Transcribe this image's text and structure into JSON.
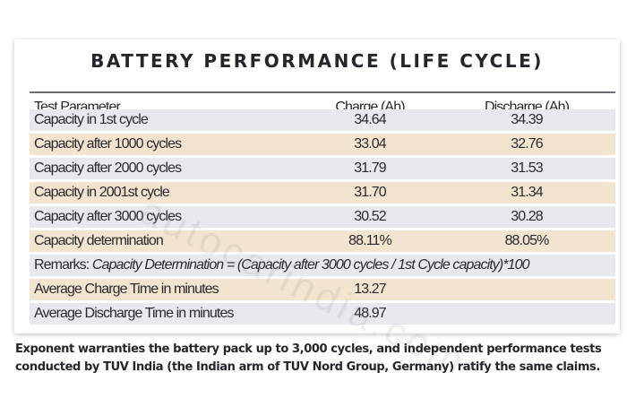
{
  "title": "BATTERY PERFORMANCE (LIFE CYCLE)",
  "table": {
    "headers": [
      "Test Parameter",
      "Charge (Ah)",
      "Discharge (Ah)"
    ],
    "rows": [
      {
        "param": "Capacity in 1st cycle",
        "charge": "34.64",
        "discharge": "34.39"
      },
      {
        "param": "Capacity after 1000 cycles",
        "charge": "33.04",
        "discharge": "32.76"
      },
      {
        "param": "Capacity after 2000 cycles",
        "charge": "31.79",
        "discharge": "31.53"
      },
      {
        "param": "Capacity in 2001st cycle",
        "charge": "31.70",
        "discharge": "31.34"
      },
      {
        "param": "Capacity after 3000 cycles",
        "charge": "30.52",
        "discharge": "30.28"
      },
      {
        "param": "Capacity determination",
        "charge": "88.11%",
        "discharge": "88.05%"
      }
    ],
    "remarks_label": "Remarks: ",
    "remarks_text": "Capacity Determination = (Capacity after 3000 cycles / 1st Cycle capacity)*100",
    "extra_rows": [
      {
        "param": "Average Charge Time in minutes",
        "value": "13.27"
      },
      {
        "param": "Average Discharge Time in minutes",
        "value": "48.97"
      }
    ]
  },
  "watermark": "autocarindia.com",
  "caption": "Exponent warranties the battery pack up to 3,000 cycles, and independent performance tests conducted by TUV India (the Indian arm of TUV Nord Group, Germany) ratify the same claims.",
  "colors": {
    "stripe_blue": "#e6e9ee",
    "stripe_beige": "#f3e4cf",
    "text": "#2a2a2e"
  }
}
